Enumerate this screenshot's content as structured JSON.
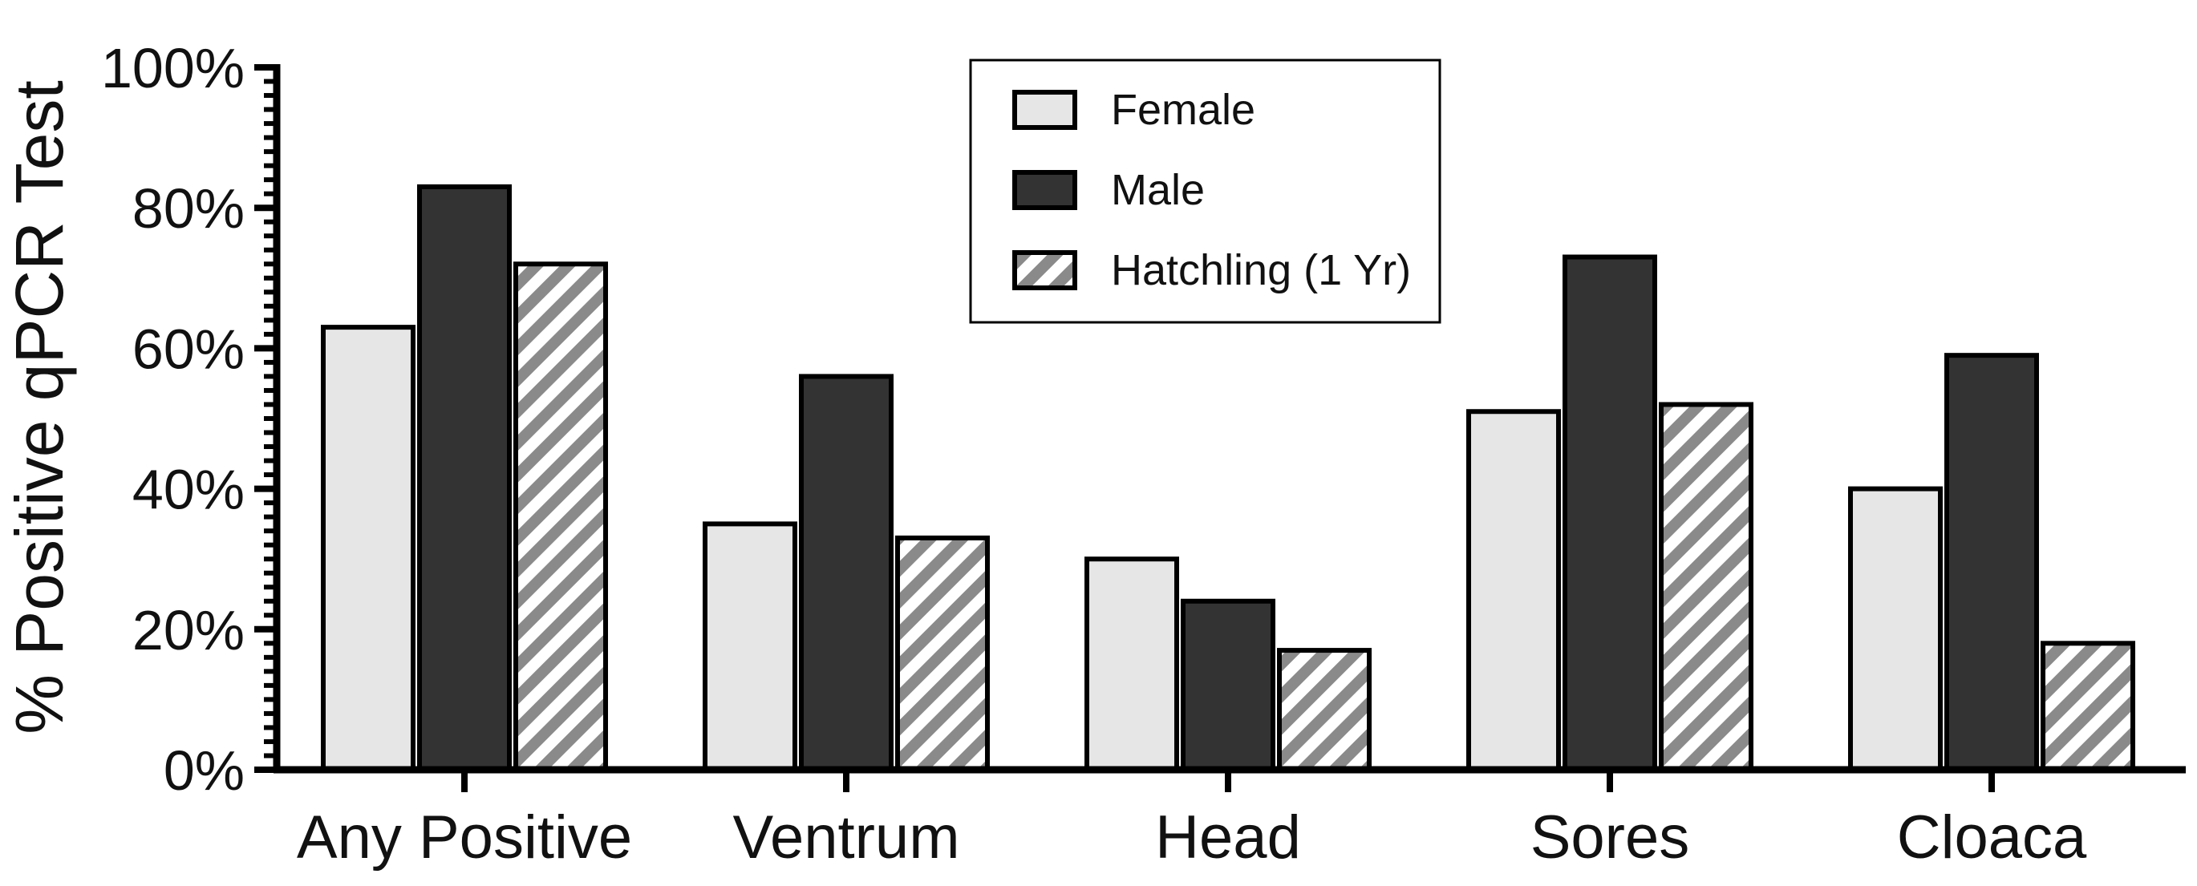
{
  "chart_data": {
    "type": "bar",
    "title": "",
    "xlabel": "",
    "ylabel": "% Positive qPCR Test",
    "ylim": [
      0,
      100
    ],
    "y_tick_step": 20,
    "y_tick_suffix": "%",
    "grid": false,
    "legend_position": "top-center",
    "categories": [
      "Any Positive",
      "Ventrum",
      "Head",
      "Sores",
      "Cloaca"
    ],
    "series": [
      {
        "name": "Female",
        "values": [
          63,
          35,
          30,
          51,
          40
        ],
        "fill": "#e6e6e6",
        "pattern": "solid"
      },
      {
        "name": "Male",
        "values": [
          83,
          56,
          24,
          73,
          59
        ],
        "fill": "#333333",
        "pattern": "solid"
      },
      {
        "name": "Hatchling (1 Yr)",
        "values": [
          72,
          33,
          17,
          52,
          18
        ],
        "fill": "#8a8a8a",
        "pattern": "hatch"
      }
    ],
    "colors": {
      "axis": "#000000",
      "text": "#111111",
      "hatch_background": "#ffffff"
    }
  }
}
